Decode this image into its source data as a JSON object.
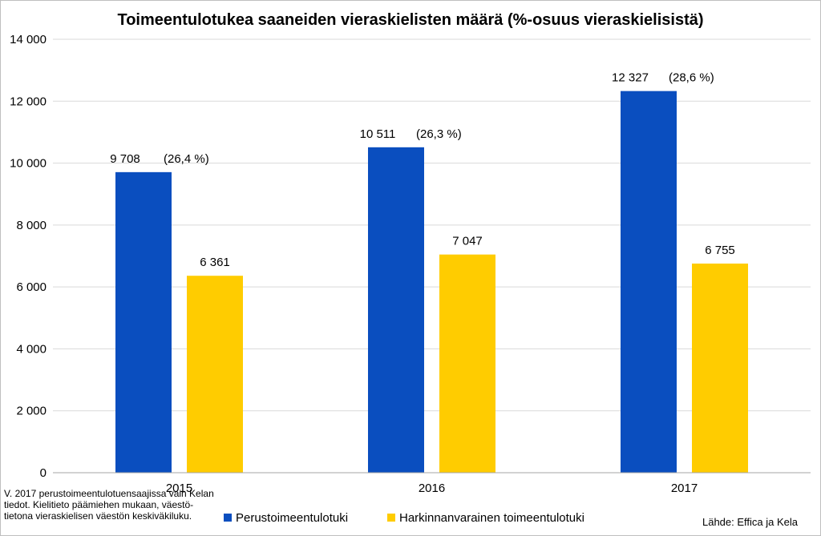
{
  "chart_data": {
    "type": "bar",
    "title": "Toimeentulotukea saaneiden vieraskielisten määrä (%-osuus vieraskielisistä)",
    "categories": [
      "2015",
      "2016",
      "2017"
    ],
    "series": [
      {
        "name": "Perustoimeentulotuki",
        "color": "#0a4ebf",
        "values": [
          9708,
          10511,
          12327
        ],
        "labels": [
          "9 708",
          "10 511",
          "12 327"
        ],
        "share_labels": [
          "(26,4 %)",
          "(26,3 %)",
          "(28,6 %)"
        ]
      },
      {
        "name": "Harkinnanvarainen toimeentulotuki",
        "color": "#ffcc00",
        "values": [
          6361,
          7047,
          6755
        ],
        "labels": [
          "6 361",
          "7 047",
          "6 755"
        ],
        "share_labels": [
          "",
          "",
          ""
        ]
      }
    ],
    "ylim": [
      0,
      14000
    ],
    "yticks": [
      0,
      2000,
      4000,
      6000,
      8000,
      10000,
      12000,
      14000
    ],
    "ytick_labels": [
      "0",
      "2 000",
      "4 000",
      "6 000",
      "8 000",
      "10 000",
      "12 000",
      "14 000"
    ],
    "grid": true,
    "legend": "bottom"
  },
  "note": {
    "lines": [
      "V. 2017 perustoimeentulotuensaajissa vain Kelan",
      "tiedot. Kielitieto päämiehen mukaan, väestö-",
      "tietona vieraskielisen väestön keskiväkiluku."
    ]
  },
  "source": "Lähde: Effica ja Kela"
}
